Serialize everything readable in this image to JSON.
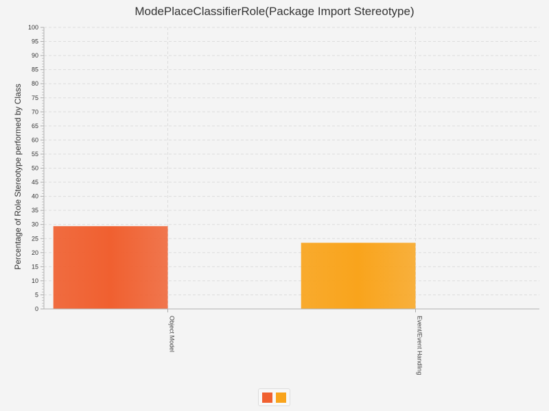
{
  "chart_data": {
    "type": "bar",
    "title": "ModePlaceClassifierRole(Package Import Stereotype)",
    "xlabel": "",
    "ylabel": "Percentage of Role Stereotype performed by Class",
    "categories": [
      "Object Model",
      "Event/Event Handling"
    ],
    "series": [
      {
        "values": [
          29.4,
          null
        ],
        "color": "#f06030"
      },
      {
        "values": [
          null,
          23.5
        ],
        "color": "#f9a41c"
      }
    ],
    "ylim": [
      0,
      100
    ],
    "yticks": [
      0,
      5,
      10,
      15,
      20,
      25,
      30,
      35,
      40,
      45,
      50,
      55,
      60,
      65,
      70,
      75,
      80,
      85,
      90,
      95,
      100
    ],
    "grid": true,
    "legend": "bottom",
    "legend_entries": [
      "",
      ""
    ]
  }
}
